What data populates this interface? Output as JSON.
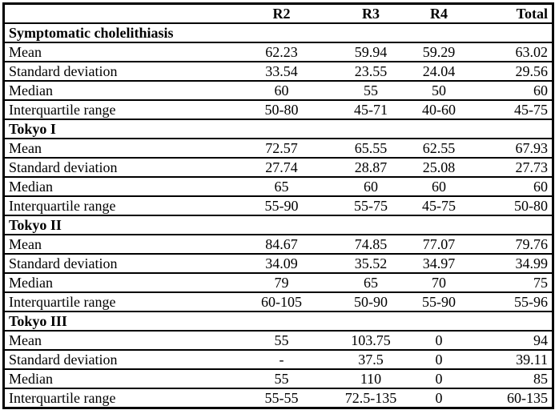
{
  "colors": {
    "border": "#000000",
    "background": "#ffffff",
    "text": "#000000"
  },
  "table": {
    "columns": [
      "",
      "R2",
      "R3",
      "R4",
      "Total"
    ],
    "sections": [
      {
        "header": "Symptomatic cholelithiasis",
        "rows": [
          {
            "label": "Mean",
            "values": [
              "62.23",
              "59.94",
              "59.29",
              "63.02"
            ]
          },
          {
            "label": "Standard deviation",
            "values": [
              "33.54",
              "23.55",
              "24.04",
              "29.56"
            ]
          },
          {
            "label": "Median",
            "values": [
              "60",
              "55",
              "50",
              "60"
            ]
          },
          {
            "label": "Interquartile range",
            "values": [
              "50-80",
              "45-71",
              "40-60",
              "45-75"
            ]
          }
        ]
      },
      {
        "header": "Tokyo I",
        "rows": [
          {
            "label": "Mean",
            "values": [
              "72.57",
              "65.55",
              "62.55",
              "67.93"
            ]
          },
          {
            "label": "Standard deviation",
            "values": [
              "27.74",
              "28.87",
              "25.08",
              "27.73"
            ]
          },
          {
            "label": "Median",
            "values": [
              "65",
              "60",
              "60",
              "60"
            ]
          },
          {
            "label": "Interquartile range",
            "values": [
              "55-90",
              "55-75",
              "45-75",
              "50-80"
            ]
          }
        ]
      },
      {
        "header": "Tokyo II",
        "rows": [
          {
            "label": "Mean",
            "values": [
              "84.67",
              "74.85",
              "77.07",
              "79.76"
            ]
          },
          {
            "label": "Standard deviation",
            "values": [
              "34.09",
              "35.52",
              "34.97",
              "34.99"
            ]
          },
          {
            "label": "Median",
            "values": [
              "79",
              "65",
              "70",
              "75"
            ]
          },
          {
            "label": "Interquartile range",
            "values": [
              "60-105",
              "50-90",
              "55-90",
              "55-96"
            ]
          }
        ]
      },
      {
        "header": "Tokyo III",
        "rows": [
          {
            "label": "Mean",
            "values": [
              "55",
              "103.75",
              "0",
              "94"
            ]
          },
          {
            "label": "Standard deviation",
            "values": [
              "-",
              "37.5",
              "0",
              "39.11"
            ]
          },
          {
            "label": "Median",
            "values": [
              "55",
              "110",
              "0",
              "85"
            ]
          },
          {
            "label": "Interquartile range",
            "values": [
              "55-55",
              "72.5-135",
              "0",
              "60-135"
            ]
          }
        ]
      }
    ]
  }
}
